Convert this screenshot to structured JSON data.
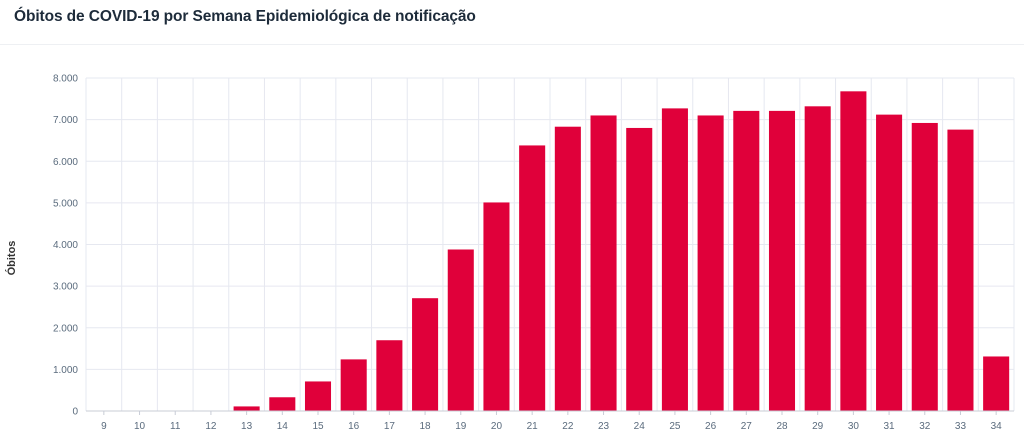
{
  "page": {
    "title": "Óbitos de COVID-19 por Semana Epidemiológica de notificação"
  },
  "chart_data": {
    "type": "bar",
    "title": "Óbitos de COVID-19 por Semana Epidemiológica de notificação",
    "xlabel": "",
    "ylabel": "Óbitos",
    "ylim": [
      0,
      8000
    ],
    "yticks": [
      0,
      1000,
      2000,
      3000,
      4000,
      5000,
      6000,
      7000,
      8000
    ],
    "ytick_labels": [
      "0",
      "1.000",
      "2.000",
      "3.000",
      "4.000",
      "5.000",
      "6.000",
      "7.000",
      "8.000"
    ],
    "grid": true,
    "bar_color": "#e0003a",
    "categories": [
      "9",
      "10",
      "11",
      "12",
      "13",
      "14",
      "15",
      "16",
      "17",
      "18",
      "19",
      "20",
      "21",
      "22",
      "23",
      "24",
      "25",
      "26",
      "27",
      "28",
      "29",
      "30",
      "31",
      "32",
      "33",
      "34"
    ],
    "values": [
      0,
      0,
      0,
      12,
      110,
      330,
      710,
      1240,
      1700,
      2710,
      3880,
      5010,
      6380,
      6830,
      7100,
      6800,
      7270,
      7100,
      7210,
      7210,
      7320,
      7680,
      7120,
      6920,
      6760,
      1310
    ]
  }
}
